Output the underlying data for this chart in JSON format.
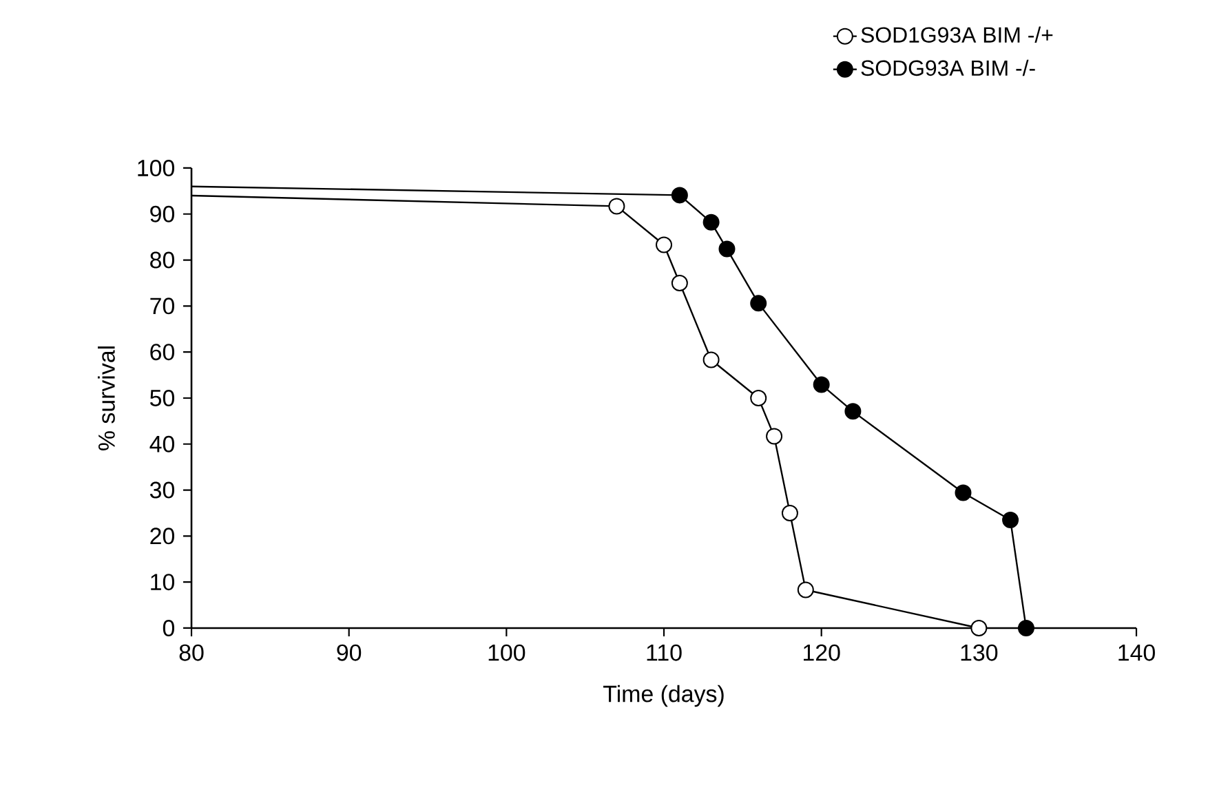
{
  "chart_data": {
    "type": "line",
    "xlabel": "Time (days)",
    "ylabel": "% survival",
    "xlim": [
      80,
      140
    ],
    "xticks": [
      80,
      90,
      100,
      110,
      120,
      130,
      140
    ],
    "ylim": [
      0,
      100
    ],
    "yticks": [
      0,
      10,
      20,
      30,
      40,
      50,
      60,
      70,
      80,
      90,
      100
    ],
    "legend": "top right",
    "marker": "circle",
    "line_style": "solid",
    "grid": false,
    "series": [
      {
        "name": "SOD1G93A BIM -/+",
        "color": "#000000",
        "x": [
          80,
          107,
          110,
          111,
          113,
          116,
          117,
          118,
          119,
          130
        ],
        "values": [
          94,
          91.7,
          83.3,
          75,
          58.3,
          50,
          41.7,
          25,
          8.3,
          0
        ]
      },
      {
        "name": "SODG93A BIM -/-",
        "color": "#000000",
        "x": [
          80,
          111,
          113,
          114,
          116,
          120,
          122,
          129,
          132,
          133
        ],
        "values": [
          96,
          94.1,
          88.2,
          82.4,
          70.6,
          52.9,
          47.1,
          29.4,
          23.5,
          0
        ]
      }
    ]
  }
}
